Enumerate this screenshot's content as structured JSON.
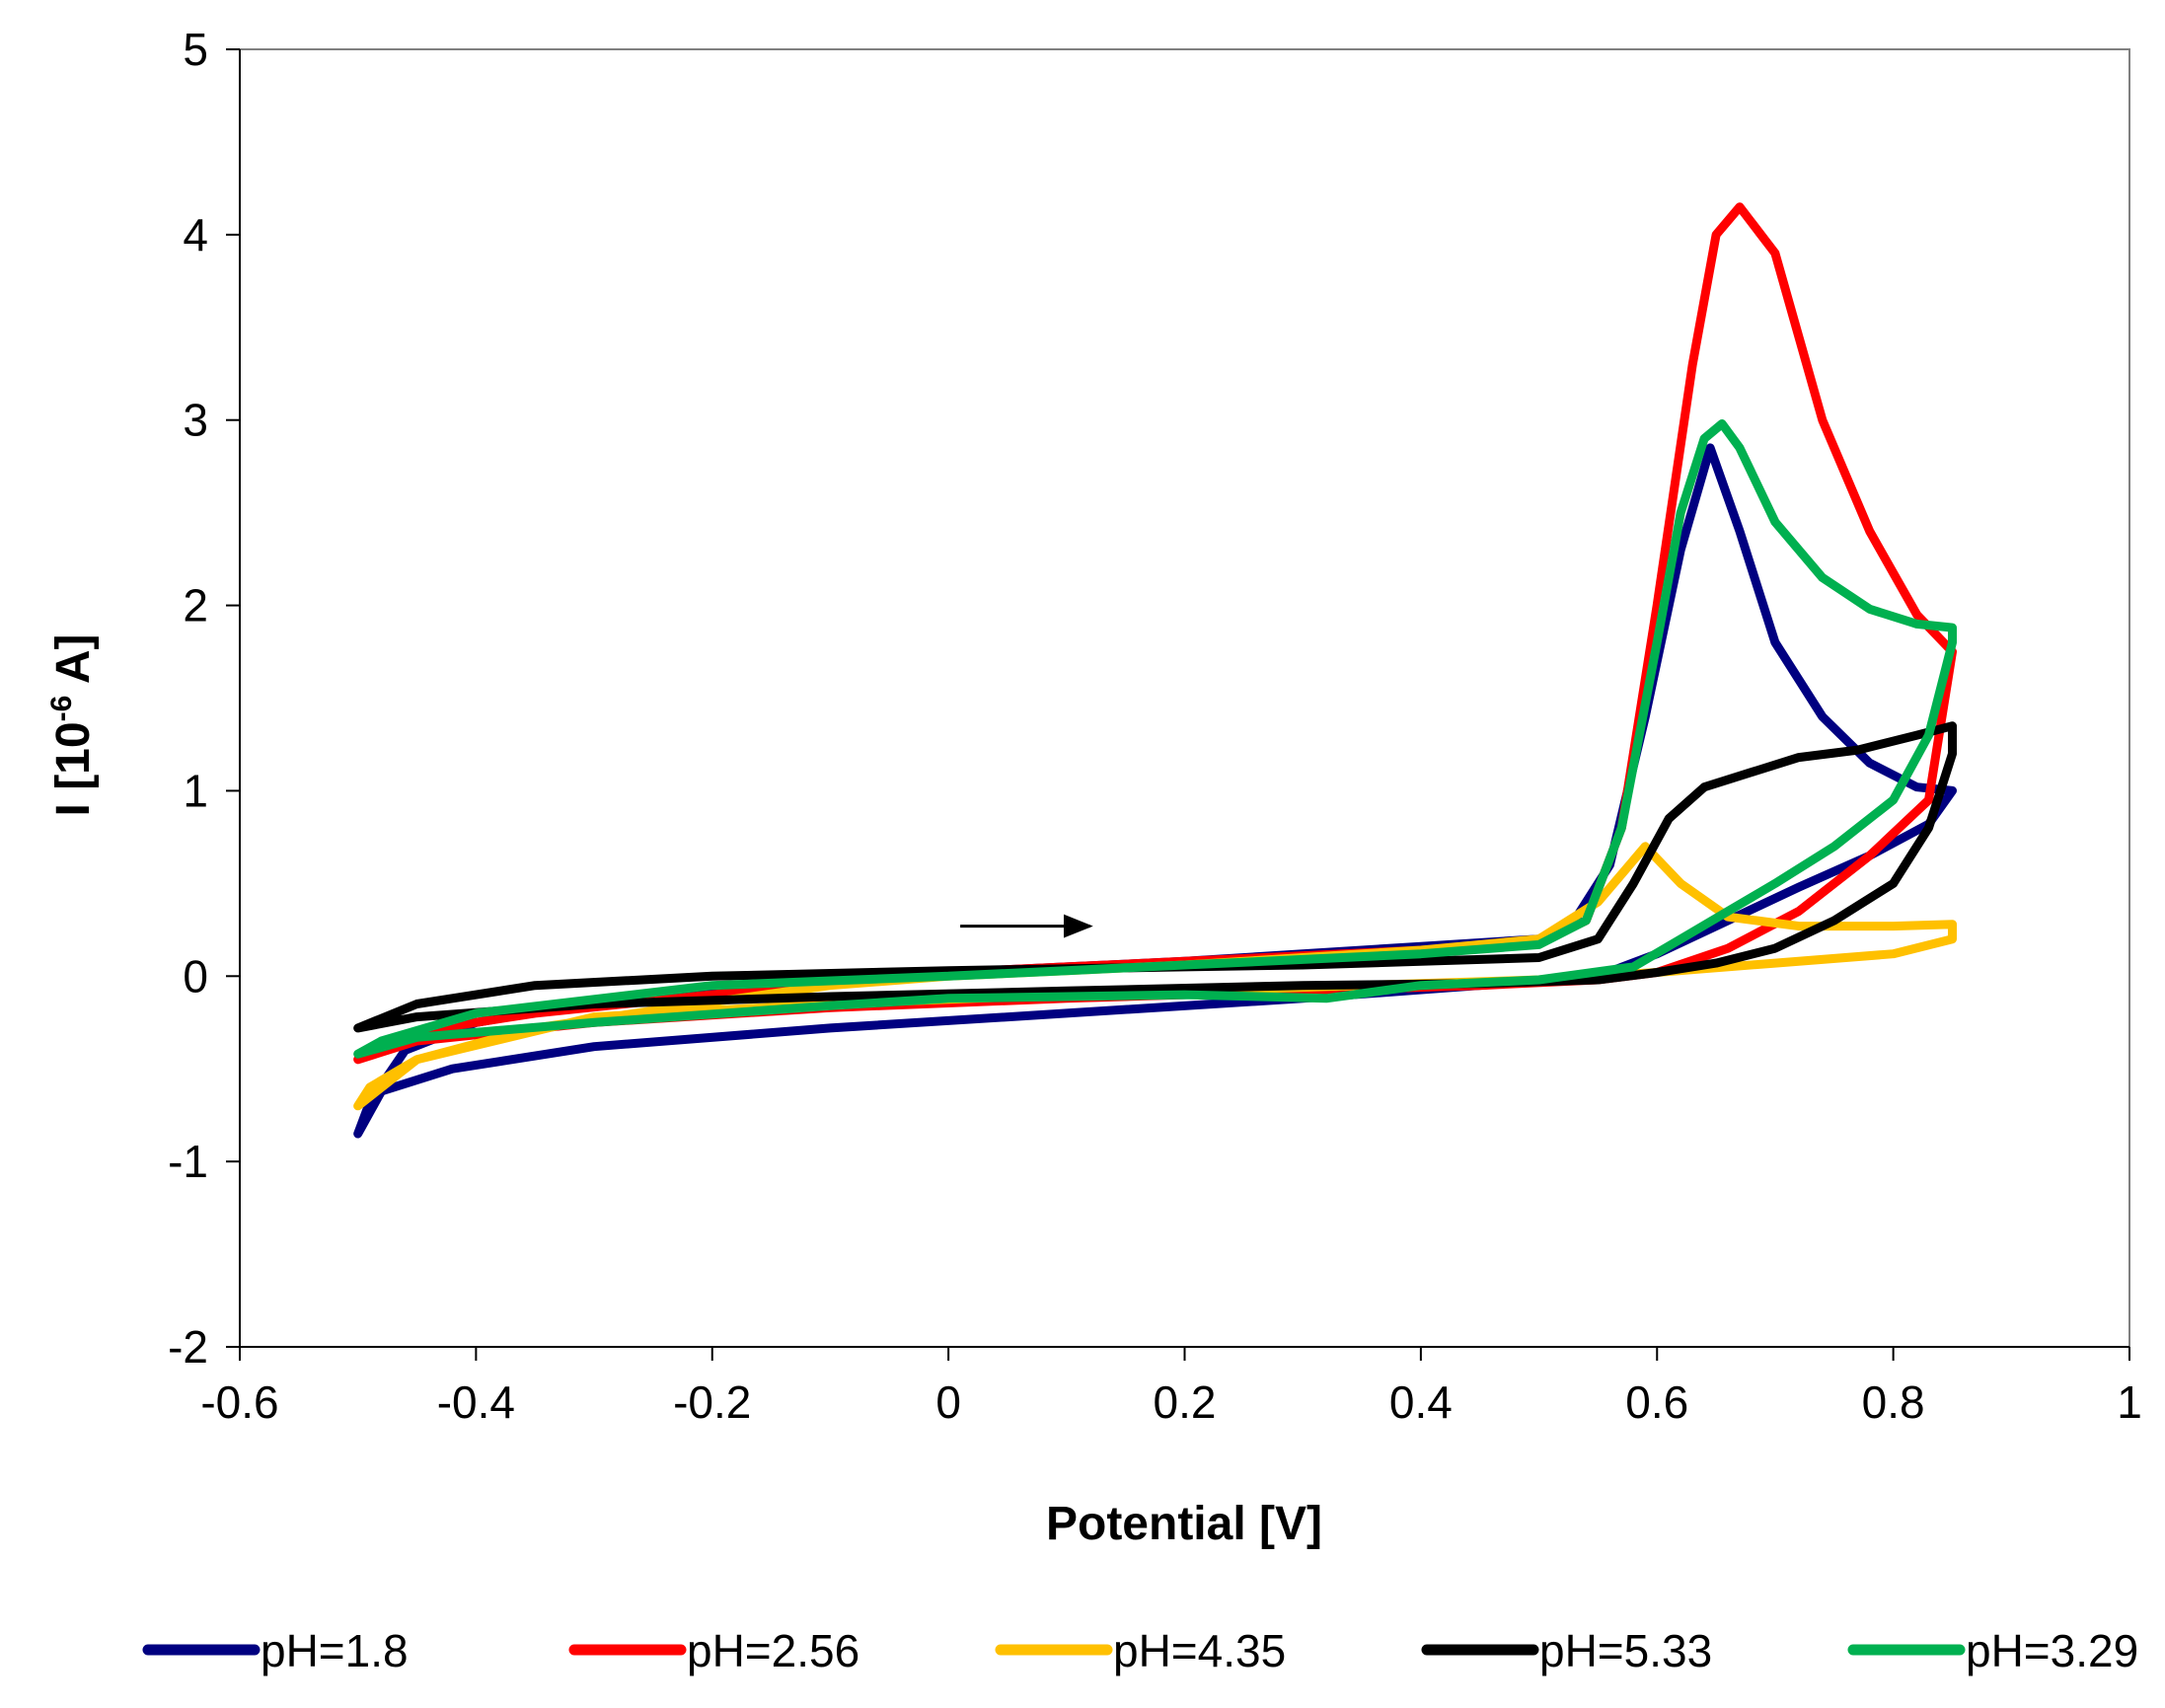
{
  "chart_data": {
    "type": "line",
    "title": "",
    "xlabel": "Potential [V]",
    "ylabel": {
      "prefix": "I [10",
      "exponent": "-6",
      "suffix": " A]"
    },
    "xlim": [
      -0.6,
      1
    ],
    "ylim": [
      -2,
      5
    ],
    "xticks": [
      -0.6,
      -0.4,
      -0.2,
      0,
      0.2,
      0.4,
      0.6,
      0.8,
      1
    ],
    "xtick_labels": [
      "-0.6",
      "-0.4",
      "-0.2",
      "0",
      "0.2",
      "0.4",
      "0.6",
      "0.8",
      "1"
    ],
    "yticks": [
      -2,
      -1,
      0,
      1,
      2,
      3,
      4,
      5
    ],
    "ytick_labels": [
      "-2",
      "-1",
      "0",
      "1",
      "2",
      "3",
      "4",
      "5"
    ],
    "grid": false,
    "legend_position": "bottom",
    "annotation": {
      "type": "arrow",
      "from": [
        0.01,
        0.27
      ],
      "to": [
        0.12,
        0.27
      ]
    },
    "series": [
      {
        "name": "pH=1.8",
        "color": "#000080",
        "x": [
          0,
          0.1,
          0.2,
          0.3,
          0.4,
          0.5,
          0.53,
          0.56,
          0.59,
          0.62,
          0.645,
          0.67,
          0.7,
          0.74,
          0.78,
          0.82,
          0.85,
          0.83,
          0.78,
          0.72,
          0.66,
          0.6,
          0.55,
          0.45,
          0.3,
          0.1,
          -0.1,
          -0.3,
          -0.42,
          -0.48,
          -0.5,
          -0.49,
          -0.46,
          -0.4,
          -0.3,
          -0.2,
          -0.1,
          0
        ],
        "y": [
          0.02,
          0.05,
          0.08,
          0.12,
          0.16,
          0.2,
          0.3,
          0.6,
          1.4,
          2.3,
          2.85,
          2.4,
          1.8,
          1.4,
          1.15,
          1.02,
          1.0,
          0.82,
          0.65,
          0.48,
          0.3,
          0.12,
          0.0,
          -0.05,
          -0.12,
          -0.2,
          -0.28,
          -0.38,
          -0.5,
          -0.62,
          -0.85,
          -0.68,
          -0.4,
          -0.25,
          -0.14,
          -0.07,
          -0.02,
          0.02
        ]
      },
      {
        "name": "pH=2.56",
        "color": "#ff0000",
        "x": [
          0,
          0.1,
          0.2,
          0.3,
          0.4,
          0.5,
          0.54,
          0.57,
          0.6,
          0.63,
          0.65,
          0.67,
          0.7,
          0.74,
          0.78,
          0.82,
          0.85,
          0.83,
          0.78,
          0.72,
          0.66,
          0.6,
          0.55,
          0.45,
          0.3,
          0.1,
          -0.1,
          -0.3,
          -0.45,
          -0.5,
          -0.49,
          -0.45,
          -0.35,
          -0.2,
          -0.1,
          0
        ],
        "y": [
          0.02,
          0.05,
          0.08,
          0.11,
          0.14,
          0.18,
          0.3,
          0.8,
          2.0,
          3.3,
          4.0,
          4.15,
          3.9,
          3.0,
          2.4,
          1.95,
          1.75,
          0.95,
          0.65,
          0.35,
          0.15,
          0.02,
          -0.02,
          -0.05,
          -0.08,
          -0.12,
          -0.17,
          -0.25,
          -0.35,
          -0.45,
          -0.4,
          -0.3,
          -0.2,
          -0.1,
          -0.04,
          0.02
        ]
      },
      {
        "name": "pH=4.35",
        "color": "#ffc000",
        "x": [
          0,
          0.1,
          0.2,
          0.3,
          0.4,
          0.5,
          0.55,
          0.59,
          0.62,
          0.66,
          0.72,
          0.8,
          0.85,
          0.85,
          0.8,
          0.7,
          0.6,
          0.5,
          0.4,
          0.3,
          0.1,
          -0.1,
          -0.3,
          -0.45,
          -0.5,
          -0.49,
          -0.45,
          -0.35,
          -0.2,
          -0.1,
          0
        ],
        "y": [
          0.0,
          0.03,
          0.06,
          0.1,
          0.14,
          0.2,
          0.4,
          0.7,
          0.5,
          0.32,
          0.27,
          0.27,
          0.28,
          0.2,
          0.12,
          0.07,
          0.02,
          -0.02,
          -0.04,
          -0.06,
          -0.1,
          -0.15,
          -0.22,
          -0.45,
          -0.7,
          -0.6,
          -0.45,
          -0.28,
          -0.14,
          -0.05,
          0.0
        ]
      },
      {
        "name": "pH=5.33",
        "color": "#000000",
        "x": [
          -0.5,
          -0.45,
          -0.35,
          -0.2,
          0,
          0.2,
          0.3,
          0.4,
          0.5,
          0.55,
          0.58,
          0.61,
          0.64,
          0.68,
          0.72,
          0.77,
          0.82,
          0.85,
          0.85,
          0.83,
          0.8,
          0.75,
          0.7,
          0.65,
          0.6,
          0.55,
          0.45,
          0.3,
          0.1,
          -0.1,
          -0.3,
          -0.45,
          -0.5
        ],
        "y": [
          -0.28,
          -0.15,
          -0.05,
          0.0,
          0.03,
          0.05,
          0.06,
          0.08,
          0.1,
          0.2,
          0.5,
          0.85,
          1.02,
          1.1,
          1.18,
          1.22,
          1.3,
          1.35,
          1.2,
          0.8,
          0.5,
          0.3,
          0.15,
          0.07,
          0.02,
          -0.02,
          -0.04,
          -0.05,
          -0.08,
          -0.11,
          -0.15,
          -0.22,
          -0.28
        ]
      },
      {
        "name": "pH=3.29",
        "color": "#00b050",
        "x": [
          0,
          0.1,
          0.2,
          0.3,
          0.4,
          0.5,
          0.54,
          0.57,
          0.6,
          0.62,
          0.64,
          0.655,
          0.67,
          0.7,
          0.74,
          0.78,
          0.82,
          0.85,
          0.85,
          0.83,
          0.8,
          0.75,
          0.7,
          0.66,
          0.62,
          0.58,
          0.5,
          0.4,
          0.32,
          0.2,
          0.1,
          0,
          -0.1,
          -0.3,
          -0.45,
          -0.5,
          -0.48,
          -0.4,
          -0.2,
          0
        ],
        "y": [
          0.0,
          0.03,
          0.06,
          0.09,
          0.12,
          0.17,
          0.3,
          0.8,
          1.8,
          2.5,
          2.9,
          2.98,
          2.85,
          2.45,
          2.15,
          1.98,
          1.9,
          1.88,
          1.8,
          1.3,
          0.95,
          0.7,
          0.5,
          0.35,
          0.2,
          0.05,
          -0.02,
          -0.05,
          -0.12,
          -0.1,
          -0.11,
          -0.12,
          -0.16,
          -0.25,
          -0.33,
          -0.42,
          -0.35,
          -0.2,
          -0.05,
          0.0
        ]
      }
    ]
  }
}
